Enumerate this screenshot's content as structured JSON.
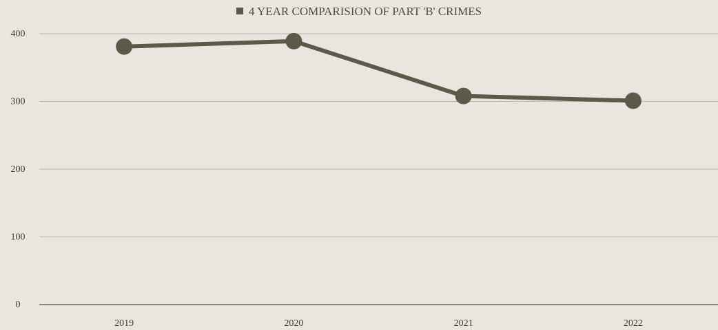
{
  "chart_data": {
    "type": "line",
    "categories": [
      "2019",
      "2020",
      "2021",
      "2022"
    ],
    "series": [
      {
        "name": "4 YEAR COMPARISION OF PART 'B' CRIMES",
        "values": [
          381,
          389,
          308,
          301
        ]
      }
    ],
    "ylim": [
      0,
      400
    ],
    "yticks": [
      0,
      100,
      200,
      300,
      400
    ],
    "ytick_labels": [
      "0",
      "100",
      "200",
      "300",
      "400"
    ],
    "grid": true,
    "legend_position": "top-center",
    "colors": {
      "series": "#5b5a49",
      "background": "#e9e6e0",
      "grid": "#b9b6ac",
      "axis": "#6b685c"
    }
  }
}
